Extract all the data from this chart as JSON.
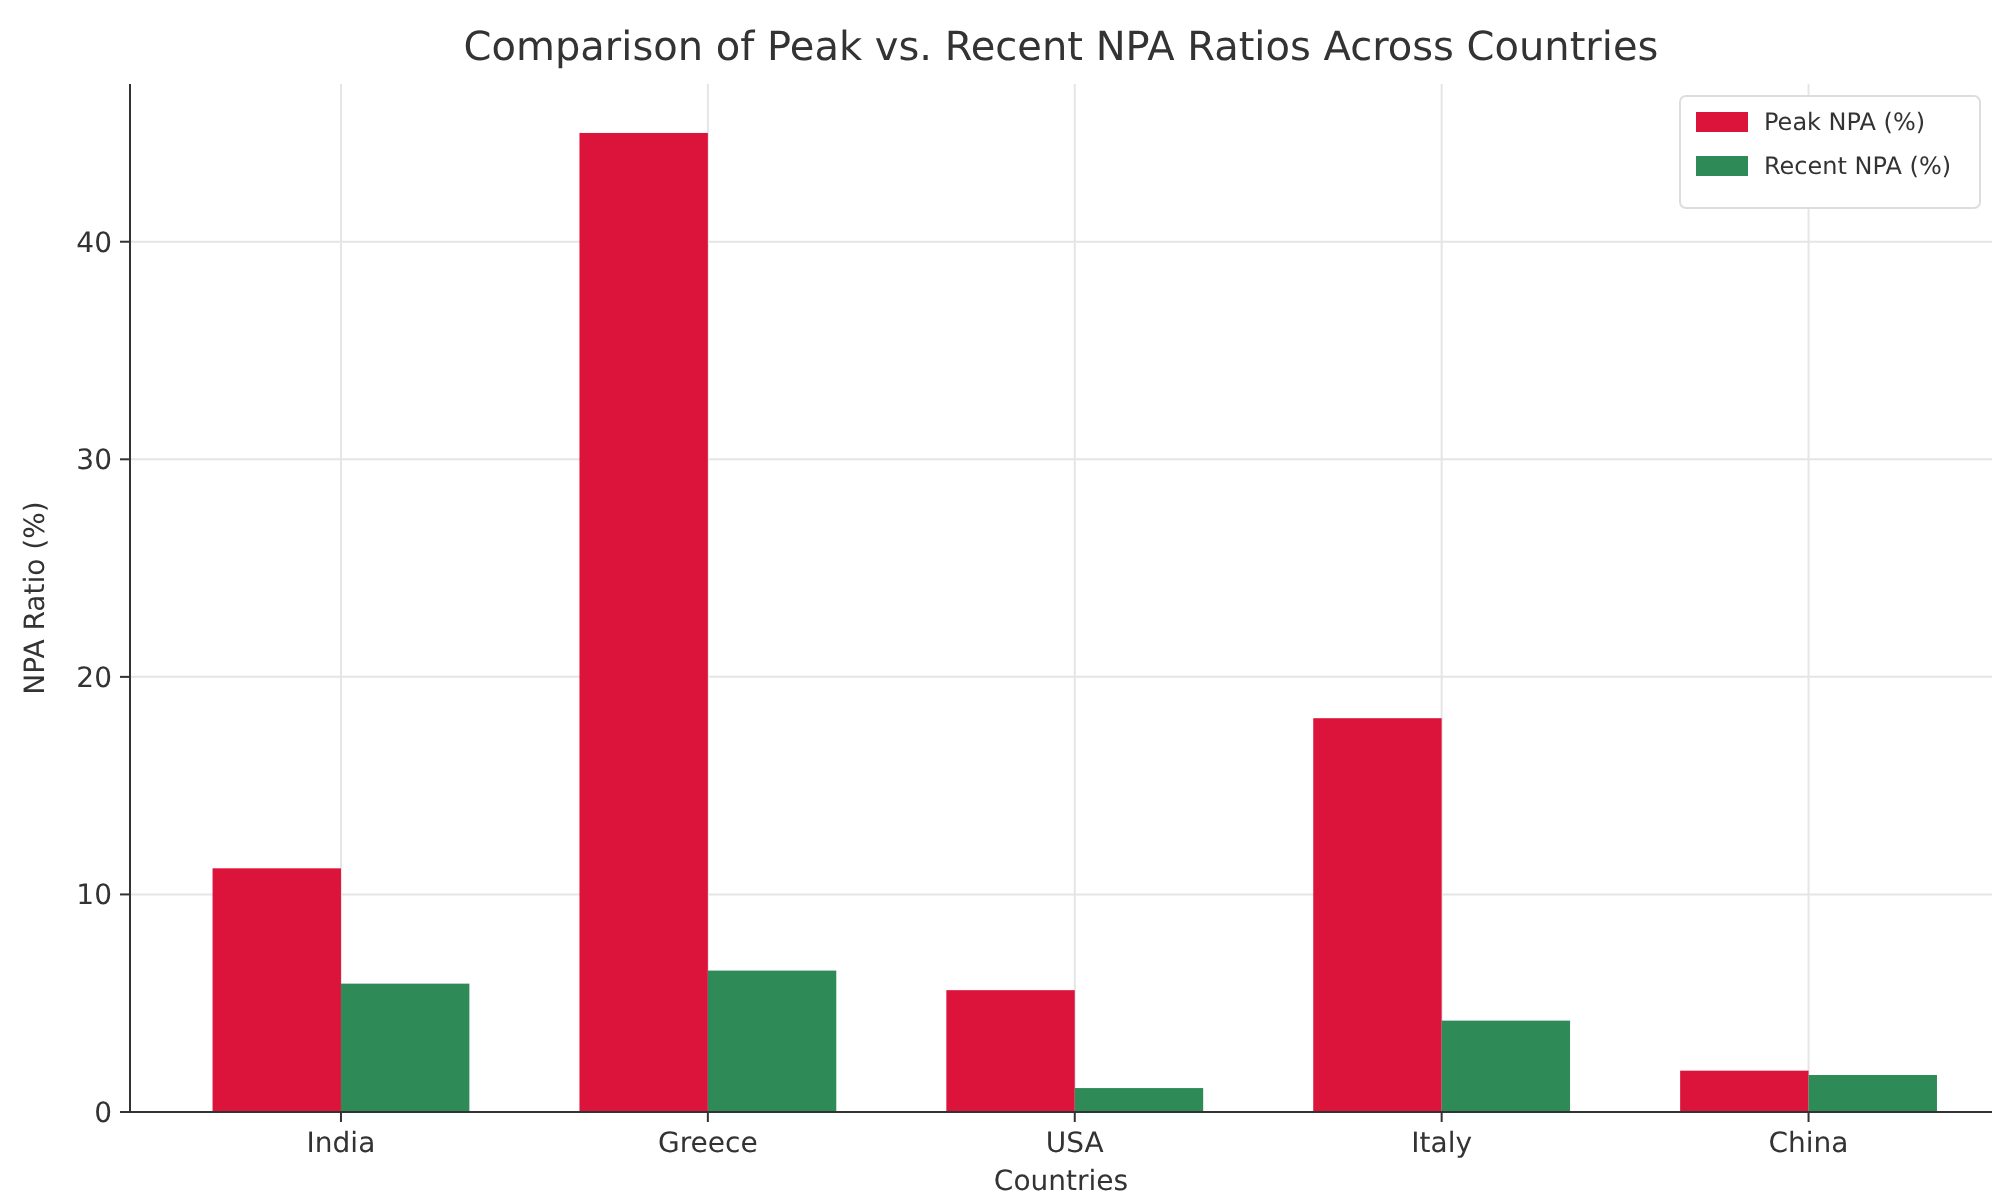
{
  "chart_data": {
    "type": "bar",
    "title": "Comparison of Peak vs. Recent NPA Ratios Across Countries",
    "xlabel": "Countries",
    "ylabel": "NPA Ratio (%)",
    "categories": [
      "India",
      "Greece",
      "USA",
      "Italy",
      "China"
    ],
    "series": [
      {
        "name": "Peak NPA (%)",
        "color": "#dc143c",
        "values": [
          11.2,
          45.0,
          5.6,
          18.1,
          1.9
        ]
      },
      {
        "name": "Recent NPA (%)",
        "color": "#2e8b57",
        "values": [
          5.9,
          6.5,
          1.1,
          4.2,
          1.7
        ]
      }
    ],
    "ylim": [
      0,
      47.25
    ],
    "yticks": [
      0,
      10,
      20,
      30,
      40
    ],
    "grid": true,
    "legend": "top right"
  }
}
